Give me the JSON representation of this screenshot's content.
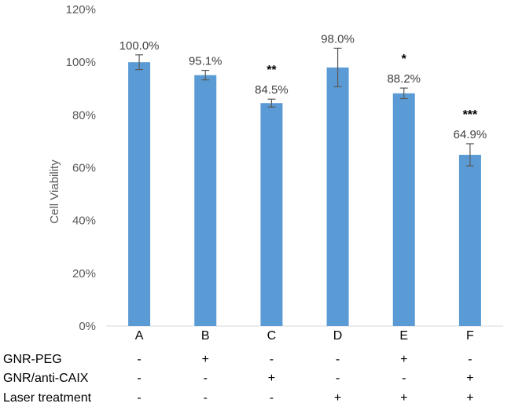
{
  "chart_data": {
    "type": "bar",
    "ylabel": "Cell Viability",
    "xlabel": "",
    "ylim": [
      0,
      120
    ],
    "yticks": [
      "0%",
      "20%",
      "40%",
      "60%",
      "80%",
      "100%",
      "120%"
    ],
    "grid": false,
    "categories": [
      "A",
      "B",
      "C",
      "D",
      "E",
      "F"
    ],
    "values": [
      100.0,
      95.1,
      84.5,
      98.0,
      88.2,
      64.9
    ],
    "value_labels": [
      "100.0%",
      "95.1%",
      "84.5%",
      "98.0%",
      "88.2%",
      "64.9%"
    ],
    "error": [
      2.8,
      1.8,
      1.5,
      7.3,
      2.0,
      4.2
    ],
    "significance": [
      "",
      "",
      "**",
      "",
      "*",
      "***"
    ],
    "bar_color": "#5b9bd5",
    "error_color": "#595959"
  },
  "treatment_table": {
    "rows": [
      {
        "label": "GNR-PEG",
        "marks": [
          "-",
          "+",
          "-",
          "-",
          "+",
          "-"
        ]
      },
      {
        "label": "GNR/anti-CAIX",
        "marks": [
          "-",
          "-",
          "+",
          "-",
          "-",
          "+"
        ]
      },
      {
        "label": "Laser treatment",
        "marks": [
          "-",
          "-",
          "-",
          "+",
          "+",
          "+"
        ]
      }
    ]
  }
}
